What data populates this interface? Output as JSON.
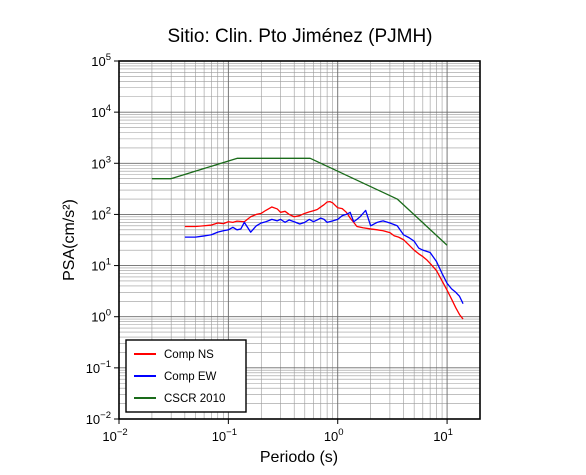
{
  "chart_data": {
    "type": "line",
    "title": "Sitio: Clin. Pto Jiménez (PJMH)",
    "xlabel": "Periodo (s)",
    "ylabel": "PSA(cm/s²)",
    "x_scale": "log",
    "y_scale": "log",
    "xlim": [
      0.01,
      20
    ],
    "ylim": [
      0.01,
      100000
    ],
    "grid": true,
    "legend_position": "bottom-left",
    "x_ticks": [
      {
        "value": 0.01,
        "base": "10",
        "exp": "−2"
      },
      {
        "value": 0.1,
        "base": "10",
        "exp": "−1"
      },
      {
        "value": 1,
        "base": "10",
        "exp": "0"
      },
      {
        "value": 10,
        "base": "10",
        "exp": "1"
      }
    ],
    "y_ticks": [
      {
        "value": 0.01,
        "base": "10",
        "exp": "−2"
      },
      {
        "value": 0.1,
        "base": "10",
        "exp": "−1"
      },
      {
        "value": 1,
        "base": "10",
        "exp": "0"
      },
      {
        "value": 10,
        "base": "10",
        "exp": "1"
      },
      {
        "value": 100,
        "base": "10",
        "exp": "2"
      },
      {
        "value": 1000,
        "base": "10",
        "exp": "3"
      },
      {
        "value": 10000,
        "base": "10",
        "exp": "4"
      },
      {
        "value": 100000,
        "base": "10",
        "exp": "5"
      }
    ],
    "series": [
      {
        "name": "Comp NS",
        "color": "#ff0000",
        "x": [
          0.04,
          0.05,
          0.06,
          0.07,
          0.08,
          0.09,
          0.1,
          0.11,
          0.12,
          0.14,
          0.16,
          0.18,
          0.2,
          0.22,
          0.25,
          0.28,
          0.3,
          0.33,
          0.36,
          0.4,
          0.45,
          0.5,
          0.55,
          0.6,
          0.65,
          0.7,
          0.75,
          0.8,
          0.85,
          0.9,
          0.95,
          1.0,
          1.1,
          1.2,
          1.3,
          1.4,
          1.5,
          1.7,
          2.0,
          2.3,
          2.6,
          3.0,
          3.3,
          3.6,
          4.0,
          4.5,
          5.0,
          5.5,
          6.0,
          6.5,
          7.0,
          8.0,
          9.0,
          10.0,
          11.0,
          12.0,
          13.0,
          14.0
        ],
        "y": [
          58,
          58,
          60,
          62,
          68,
          66,
          72,
          70,
          74,
          72,
          90,
          100,
          105,
          120,
          140,
          128,
          110,
          115,
          100,
          90,
          95,
          105,
          112,
          118,
          125,
          140,
          155,
          175,
          178,
          168,
          150,
          135,
          130,
          110,
          85,
          70,
          58,
          55,
          52,
          50,
          48,
          44,
          38,
          36,
          32,
          25,
          20,
          17,
          15,
          13,
          11,
          8,
          5,
          3.3,
          2.2,
          1.5,
          1.1,
          0.9
        ]
      },
      {
        "name": "Comp EW",
        "color": "#0000ff",
        "x": [
          0.04,
          0.05,
          0.06,
          0.07,
          0.08,
          0.09,
          0.1,
          0.11,
          0.12,
          0.13,
          0.14,
          0.16,
          0.18,
          0.2,
          0.22,
          0.25,
          0.28,
          0.3,
          0.33,
          0.36,
          0.4,
          0.45,
          0.5,
          0.55,
          0.6,
          0.65,
          0.7,
          0.75,
          0.8,
          0.9,
          1.0,
          1.1,
          1.2,
          1.3,
          1.4,
          1.5,
          1.6,
          1.8,
          2.0,
          2.3,
          2.6,
          3.0,
          3.5,
          4.0,
          4.5,
          5.0,
          5.5,
          6.0,
          7.0,
          8.0,
          9.0,
          10.0,
          11.0,
          12.0,
          13.0,
          14.0
        ],
        "y": [
          36,
          36,
          38,
          40,
          45,
          48,
          50,
          56,
          50,
          52,
          70,
          45,
          60,
          68,
          72,
          80,
          75,
          80,
          70,
          78,
          72,
          65,
          70,
          80,
          72,
          78,
          85,
          80,
          70,
          75,
          80,
          95,
          100,
          110,
          72,
          80,
          90,
          120,
          60,
          70,
          75,
          68,
          60,
          40,
          35,
          30,
          22,
          20,
          18,
          12,
          7,
          4.5,
          3.5,
          3.0,
          2.5,
          1.8
        ]
      },
      {
        "name": "CSCR 2010",
        "color": "#1a6b1a",
        "x": [
          0.02,
          0.03,
          0.12,
          0.56,
          3.5,
          10.0
        ],
        "y": [
          500,
          500,
          1250,
          1250,
          200,
          25
        ]
      }
    ]
  }
}
